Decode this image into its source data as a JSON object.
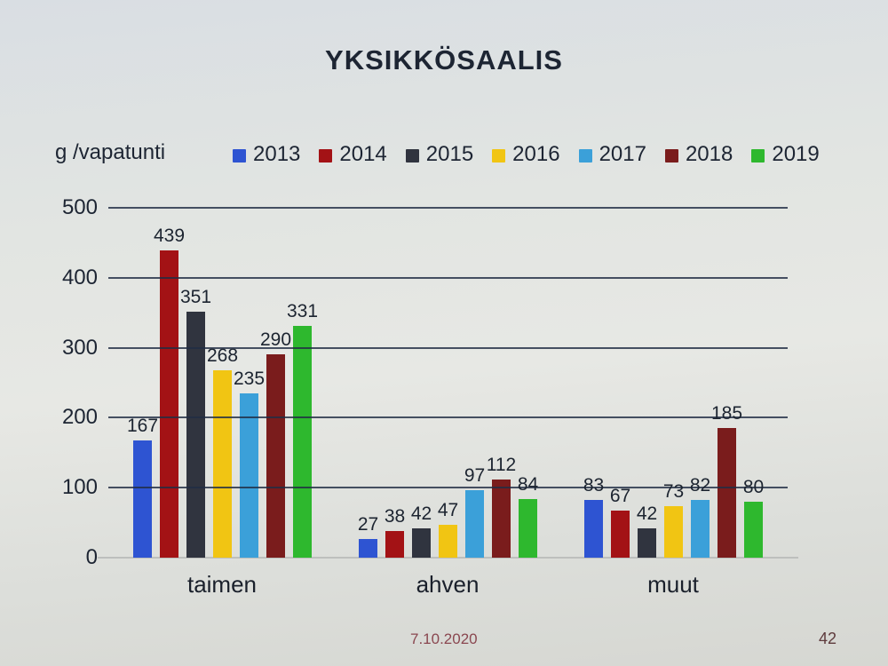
{
  "slide": {
    "footer": {
      "date": "7.10.2020",
      "page_number": "42"
    }
  },
  "chart_data": {
    "type": "bar",
    "title": "YKSIKKÖSAALIS",
    "ylabel": "g /vapatunti",
    "xlabel": "",
    "ylim": [
      0,
      500
    ],
    "yticks": [
      0,
      100,
      200,
      300,
      400,
      500
    ],
    "grid": true,
    "legend_position": "top",
    "categories": [
      "taimen",
      "ahven",
      "muut"
    ],
    "series": [
      {
        "name": "2013",
        "color": "#2e54d2",
        "values": [
          167,
          27,
          83
        ]
      },
      {
        "name": "2014",
        "color": "#a31215",
        "values": [
          439,
          38,
          67
        ]
      },
      {
        "name": "2015",
        "color": "#30343f",
        "values": [
          351,
          42,
          42
        ]
      },
      {
        "name": "2016",
        "color": "#f1c513",
        "values": [
          268,
          47,
          73
        ]
      },
      {
        "name": "2017",
        "color": "#3ba0d9",
        "values": [
          235,
          97,
          82
        ]
      },
      {
        "name": "2018",
        "color": "#7a1c1c",
        "values": [
          290,
          112,
          185
        ]
      },
      {
        "name": "2019",
        "color": "#2eb82e",
        "values": [
          331,
          84,
          80
        ]
      }
    ]
  }
}
